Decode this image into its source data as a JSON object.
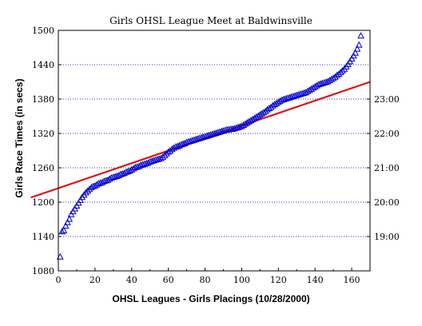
{
  "chart_data": {
    "type": "scatter",
    "title": "Girls OHSL League Meet at Baldwinsville",
    "xlabel": "OHSL Leagues - Girls Placings (10/28/2000)",
    "ylabel": "Girls Race Times (in secs)",
    "xlim": [
      0,
      170
    ],
    "ylim": [
      1080,
      1500
    ],
    "x_ticks": [
      "0",
      "20",
      "40",
      "60",
      "80",
      "100",
      "120",
      "140",
      "160"
    ],
    "y_ticks": [
      "1080",
      "1140",
      "1200",
      "1260",
      "1320",
      "1380",
      "1440",
      "1500"
    ],
    "y2_ticks": [
      {
        "value": 1140,
        "label": "19:00"
      },
      {
        "value": 1200,
        "label": "20:00"
      },
      {
        "value": 1260,
        "label": "21:00"
      },
      {
        "value": 1320,
        "label": "22:00"
      },
      {
        "value": 1380,
        "label": "23:00"
      }
    ],
    "grid": "horizontal-dotted",
    "series": [
      {
        "marker": "open-triangle",
        "color": "#0000cc",
        "x": [
          1,
          2,
          3,
          4,
          5,
          6,
          7,
          8,
          9,
          10,
          11,
          12,
          13,
          14,
          15,
          16,
          17,
          18,
          19,
          20,
          21,
          22,
          23,
          24,
          25,
          26,
          27,
          28,
          29,
          30,
          31,
          32,
          33,
          34,
          35,
          36,
          37,
          38,
          39,
          40,
          41,
          42,
          43,
          44,
          45,
          46,
          47,
          48,
          49,
          50,
          51,
          52,
          53,
          54,
          55,
          56,
          57,
          58,
          59,
          60,
          61,
          62,
          63,
          64,
          65,
          66,
          67,
          68,
          69,
          70,
          71,
          72,
          73,
          74,
          75,
          76,
          77,
          78,
          79,
          80,
          81,
          82,
          83,
          84,
          85,
          86,
          87,
          88,
          89,
          90,
          91,
          92,
          93,
          94,
          95,
          96,
          97,
          98,
          99,
          100,
          101,
          102,
          103,
          104,
          105,
          106,
          107,
          108,
          109,
          110,
          111,
          112,
          113,
          114,
          115,
          116,
          117,
          118,
          119,
          120,
          121,
          122,
          123,
          124,
          125,
          126,
          127,
          128,
          129,
          130,
          131,
          132,
          133,
          134,
          135,
          136,
          137,
          138,
          139,
          140,
          141,
          142,
          143,
          144,
          145,
          146,
          147,
          148,
          149,
          150,
          151,
          152,
          153,
          154,
          155,
          156,
          157,
          158,
          159,
          160,
          161,
          162,
          163,
          164,
          165
        ],
        "y": [
          1104,
          1148,
          1150,
          1158,
          1164,
          1170,
          1178,
          1183,
          1188,
          1193,
          1198,
          1203,
          1208,
          1212,
          1216,
          1219,
          1222,
          1225,
          1227,
          1228,
          1230,
          1232,
          1233,
          1234,
          1236,
          1237,
          1238,
          1240,
          1242,
          1243,
          1244,
          1245,
          1246,
          1248,
          1249,
          1250,
          1252,
          1253,
          1254,
          1256,
          1258,
          1260,
          1261,
          1262,
          1264,
          1265,
          1266,
          1267,
          1268,
          1270,
          1271,
          1272,
          1273,
          1274,
          1275,
          1276,
          1278,
          1281,
          1284,
          1287,
          1289,
          1292,
          1294,
          1296,
          1297,
          1298,
          1300,
          1301,
          1302,
          1304,
          1305,
          1306,
          1307,
          1308,
          1309,
          1310,
          1311,
          1312,
          1313,
          1314,
          1315,
          1316,
          1317,
          1318,
          1319,
          1320,
          1321,
          1322,
          1323,
          1324,
          1325,
          1326,
          1326,
          1327,
          1327,
          1328,
          1329,
          1330,
          1331,
          1332,
          1334,
          1336,
          1338,
          1340,
          1342,
          1344,
          1346,
          1348,
          1350,
          1352,
          1354,
          1356,
          1358,
          1361,
          1363,
          1365,
          1368,
          1370,
          1372,
          1374,
          1376,
          1378,
          1379,
          1380,
          1381,
          1382,
          1383,
          1384,
          1385,
          1386,
          1387,
          1388,
          1389,
          1390,
          1391,
          1393,
          1395,
          1397,
          1399,
          1401,
          1403,
          1405,
          1406,
          1407,
          1408,
          1409,
          1410,
          1412,
          1414,
          1416,
          1418,
          1421,
          1423,
          1426,
          1429,
          1432,
          1436,
          1440,
          1445,
          1450,
          1455,
          1460,
          1467,
          1474,
          1490
        ]
      },
      {
        "type": "line",
        "color": "#dd1111",
        "x": [
          -15,
          170
        ],
        "y": [
          1208,
          1410
        ]
      }
    ]
  }
}
